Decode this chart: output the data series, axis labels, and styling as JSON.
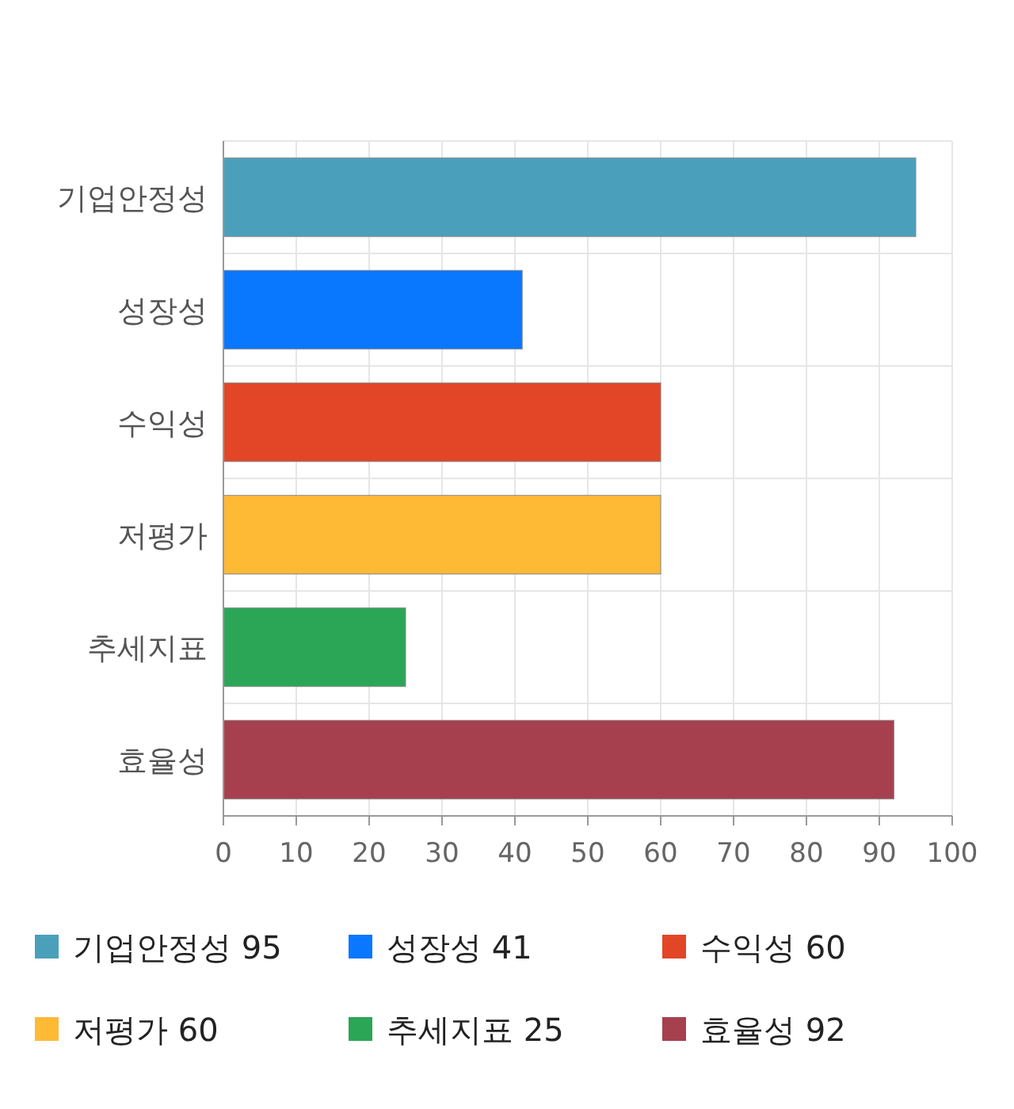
{
  "chart_data": {
    "type": "bar",
    "orientation": "horizontal",
    "stacked": true,
    "categories": [
      "기업안정성",
      "성장성",
      "수익성",
      "저평가",
      "추세지표",
      "효율성"
    ],
    "series": [
      {
        "name": "기업안정성 95",
        "color": "#4aa0ba",
        "values": [
          95,
          null,
          null,
          null,
          null,
          null
        ]
      },
      {
        "name": "성장성 41",
        "color": "#0a77ff",
        "values": [
          null,
          41,
          null,
          null,
          null,
          null
        ]
      },
      {
        "name": "수익성 60",
        "color": "#e24626",
        "values": [
          null,
          null,
          60,
          null,
          null,
          null
        ]
      },
      {
        "name": "저평가 60",
        "color": "#feb935",
        "values": [
          null,
          null,
          null,
          60,
          null,
          null
        ]
      },
      {
        "name": "추세지표 25",
        "color": "#2ba657",
        "values": [
          null,
          null,
          null,
          null,
          25,
          null
        ]
      },
      {
        "name": "효율성 92",
        "color": "#a6404e",
        "values": [
          null,
          null,
          null,
          null,
          null,
          92
        ]
      }
    ],
    "xlim": [
      0,
      100
    ],
    "xticks": [
      0,
      10,
      20,
      30,
      40,
      50,
      60,
      70,
      80,
      90,
      100
    ],
    "grid": true,
    "legend": "bottom"
  }
}
